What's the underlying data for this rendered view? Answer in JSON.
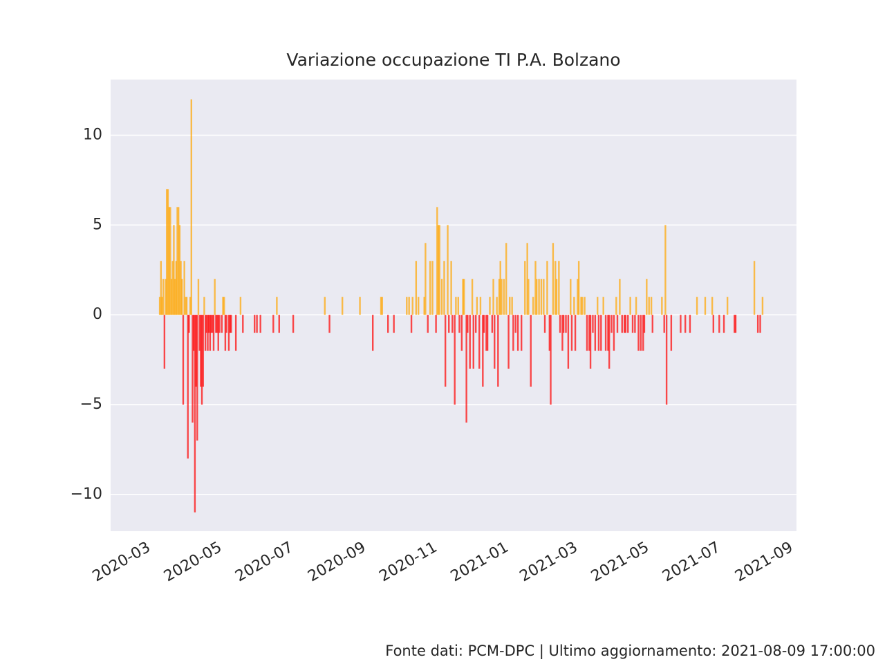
{
  "chart_data": {
    "type": "bar",
    "title": "Variazione occupazione TI P.A. Bolzano",
    "footnote": "Fonte dati: PCM-DPC | Ultimo aggiornamento: 2021-08-09 17:00:00",
    "colors": {
      "positive": "orange",
      "negative": "red"
    },
    "alpha": 0.7,
    "grid": true,
    "xlim": [
      "2020-01-28",
      "2021-09-05"
    ],
    "xticks": [
      "2020-03",
      "2020-05",
      "2020-07",
      "2020-09",
      "2020-11",
      "2021-01",
      "2021-03",
      "2021-05",
      "2021-07",
      "2021-09"
    ],
    "ylim": [
      -12.05,
      13.1
    ],
    "yticks": [
      {
        "value": -10,
        "label": "−10"
      },
      {
        "value": -5,
        "label": "−5"
      },
      0,
      5,
      10
    ],
    "x": [
      "2020-03-10",
      "2020-03-11",
      "2020-03-12",
      "2020-03-13",
      "2020-03-14",
      "2020-03-15",
      "2020-03-16",
      "2020-03-17",
      "2020-03-18",
      "2020-03-19",
      "2020-03-20",
      "2020-03-21",
      "2020-03-22",
      "2020-03-23",
      "2020-03-24",
      "2020-03-25",
      "2020-03-26",
      "2020-03-27",
      "2020-03-28",
      "2020-03-29",
      "2020-03-30",
      "2020-03-31",
      "2020-04-01",
      "2020-04-02",
      "2020-04-03",
      "2020-04-04",
      "2020-04-05",
      "2020-04-06",
      "2020-04-07",
      "2020-04-08",
      "2020-04-09",
      "2020-04-10",
      "2020-04-11",
      "2020-04-12",
      "2020-04-13",
      "2020-04-14",
      "2020-04-15",
      "2020-04-16",
      "2020-04-17",
      "2020-04-18",
      "2020-04-19",
      "2020-04-20",
      "2020-04-21",
      "2020-04-22",
      "2020-04-23",
      "2020-04-24",
      "2020-04-25",
      "2020-04-26",
      "2020-04-27",
      "2020-04-28",
      "2020-04-29",
      "2020-04-30",
      "2020-05-02",
      "2020-05-03",
      "2020-05-04",
      "2020-05-05",
      "2020-05-06",
      "2020-05-08",
      "2020-05-09",
      "2020-05-10",
      "2020-05-14",
      "2020-05-18",
      "2020-05-20",
      "2020-05-30",
      "2020-06-01",
      "2020-06-04",
      "2020-06-15",
      "2020-06-18",
      "2020-06-20",
      "2020-07-02",
      "2020-07-29",
      "2020-08-02",
      "2020-08-13",
      "2020-08-28",
      "2020-09-08",
      "2020-09-15",
      "2020-09-16",
      "2020-09-21",
      "2020-09-26",
      "2020-10-07",
      "2020-10-09",
      "2020-10-11",
      "2020-10-12",
      "2020-10-15",
      "2020-10-17",
      "2020-10-22",
      "2020-10-23",
      "2020-10-25",
      "2020-10-27",
      "2020-10-29",
      "2020-11-01",
      "2020-11-02",
      "2020-11-03",
      "2020-11-04",
      "2020-11-06",
      "2020-11-08",
      "2020-11-09",
      "2020-11-11",
      "2020-11-12",
      "2020-11-14",
      "2020-11-15",
      "2020-11-17",
      "2020-11-18",
      "2020-11-20",
      "2020-11-21",
      "2020-11-23",
      "2020-11-24",
      "2020-11-25",
      "2020-11-27",
      "2020-11-28",
      "2020-11-30",
      "2020-12-02",
      "2020-12-03",
      "2020-12-05",
      "2020-12-06",
      "2020-12-08",
      "2020-12-09",
      "2020-12-11",
      "2020-12-12",
      "2020-12-14",
      "2020-12-15",
      "2020-12-17",
      "2020-12-19",
      "2020-12-20",
      "2020-12-21",
      "2020-12-23",
      "2020-12-24",
      "2020-12-25",
      "2020-12-26",
      "2020-12-27",
      "2020-12-29",
      "2020-12-31",
      "2021-01-02",
      "2021-01-03",
      "2021-01-05",
      "2021-01-06",
      "2021-01-08",
      "2021-01-10",
      "2021-01-13",
      "2021-01-16",
      "2021-01-18",
      "2021-01-19",
      "2021-01-21",
      "2021-01-23",
      "2021-01-25",
      "2021-01-26",
      "2021-01-28",
      "2021-01-30",
      "2021-02-01",
      "2021-02-02",
      "2021-02-04",
      "2021-02-06",
      "2021-02-07",
      "2021-02-09",
      "2021-02-11",
      "2021-02-12",
      "2021-02-14",
      "2021-02-15",
      "2021-02-17",
      "2021-02-18",
      "2021-02-20",
      "2021-02-22",
      "2021-02-24",
      "2021-02-25",
      "2021-02-27",
      "2021-02-28",
      "2021-03-02",
      "2021-03-03",
      "2021-03-05",
      "2021-03-06",
      "2021-03-08",
      "2021-03-10",
      "2021-03-12",
      "2021-03-13",
      "2021-03-15",
      "2021-03-17",
      "2021-03-19",
      "2021-03-20",
      "2021-03-22",
      "2021-03-24",
      "2021-03-26",
      "2021-03-28",
      "2021-03-29",
      "2021-03-31",
      "2021-04-02",
      "2021-04-04",
      "2021-04-05",
      "2021-04-07",
      "2021-04-09",
      "2021-04-11",
      "2021-04-12",
      "2021-04-14",
      "2021-04-16",
      "2021-04-18",
      "2021-04-20",
      "2021-04-21",
      "2021-04-23",
      "2021-04-25",
      "2021-04-27",
      "2021-04-28",
      "2021-04-30",
      "2021-05-02",
      "2021-05-04",
      "2021-05-05",
      "2021-05-13",
      "2021-05-15",
      "2021-05-16",
      "2021-05-17",
      "2021-05-21",
      "2021-05-29",
      "2021-06-02",
      "2021-06-06",
      "2021-06-12",
      "2021-06-19",
      "2021-06-25",
      "2021-06-26",
      "2021-07-01",
      "2021-07-05",
      "2021-07-08",
      "2021-07-14",
      "2021-07-15",
      "2021-07-31",
      "2021-08-03",
      "2021-08-05",
      "2021-08-07"
    ],
    "values": [
      1,
      3,
      1,
      2,
      -3,
      2,
      7,
      7,
      6,
      6,
      2,
      3,
      5,
      2,
      3,
      6,
      6,
      5,
      3,
      2,
      -5,
      3,
      1,
      1,
      -8,
      -1,
      1,
      12,
      -6,
      -2,
      -11,
      -4,
      -7,
      2,
      -2,
      -4,
      -5,
      -4,
      1,
      -2,
      -1,
      -2,
      -1,
      -2,
      -1,
      -1,
      -2,
      2,
      -1,
      -1,
      -2,
      -1,
      -1,
      1,
      1,
      -2,
      -1,
      -2,
      -1,
      -1,
      -2,
      1,
      -1,
      -1,
      -1,
      -1,
      -1,
      1,
      -1,
      -1,
      1,
      -1,
      1,
      1,
      -2,
      1,
      1,
      -1,
      -1,
      1,
      1,
      -1,
      1,
      3,
      1,
      1,
      4,
      -1,
      3,
      3,
      -1,
      6,
      5,
      5,
      2,
      3,
      -4,
      5,
      -1,
      3,
      -1,
      -5,
      1,
      1,
      -1,
      -2,
      2,
      2,
      -6,
      -1,
      -3,
      2,
      -3,
      -1,
      1,
      -3,
      1,
      -4,
      -1,
      -2,
      -2,
      1,
      -1,
      2,
      -3,
      1,
      -4,
      2,
      3,
      2,
      2,
      4,
      -3,
      1,
      1,
      -2,
      -1,
      -2,
      -2,
      3,
      4,
      2,
      -4,
      1,
      3,
      2,
      2,
      2,
      2,
      -1,
      3,
      -2,
      -5,
      4,
      3,
      2,
      3,
      -1,
      -2,
      -1,
      -1,
      -3,
      2,
      -2,
      1,
      -2,
      2,
      3,
      1,
      1,
      1,
      -2,
      -2,
      -3,
      -1,
      -2,
      1,
      -2,
      -2,
      1,
      -2,
      -2,
      -3,
      -1,
      -2,
      1,
      -1,
      2,
      -1,
      -1,
      -1,
      -1,
      1,
      -1,
      -1,
      1,
      -2,
      -2,
      -2,
      -1,
      2,
      1,
      1,
      -1,
      1,
      -1,
      5,
      -5,
      -2,
      -1,
      -1,
      -1,
      1,
      1,
      1,
      -1,
      -1,
      -1,
      1,
      -1,
      -1,
      3,
      -1,
      -1,
      1
    ]
  }
}
